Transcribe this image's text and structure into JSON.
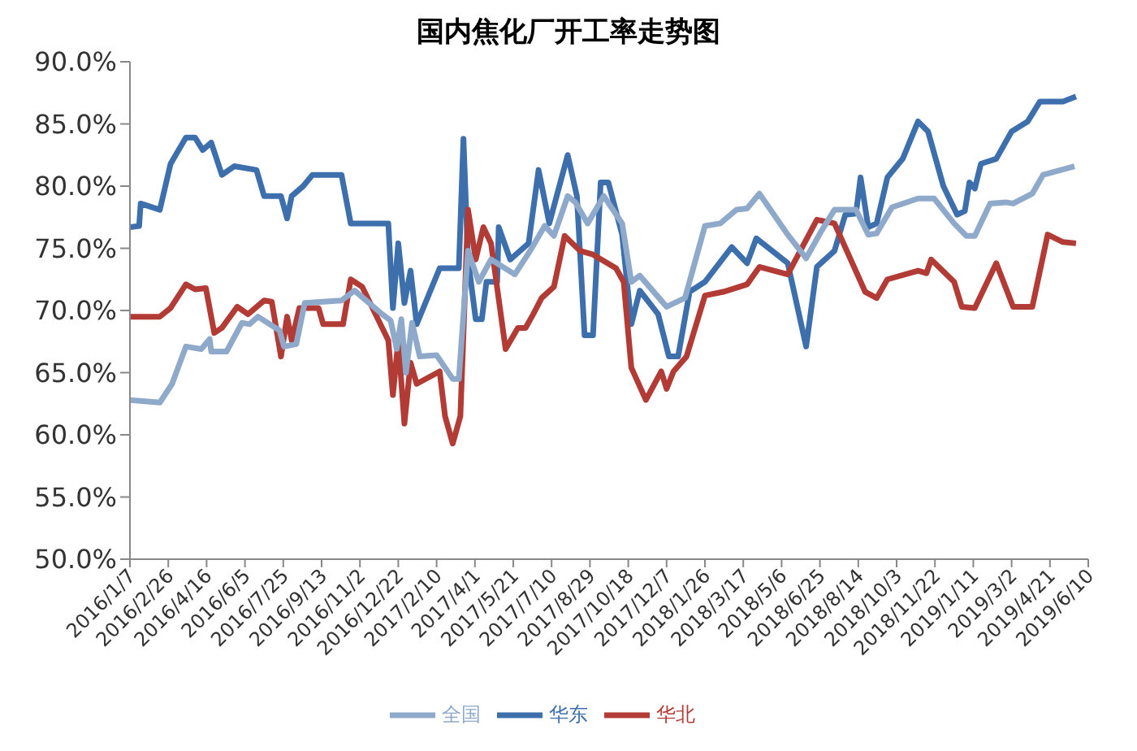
{
  "chart_data": {
    "type": "line",
    "title": "国内焦化厂开工率走势图",
    "xlim": [
      "2016-01-07",
      "2019-06-10"
    ],
    "xticks": [
      {
        "value": "2016-01-07",
        "label": "2016/1/7"
      },
      {
        "value": "2016-02-26",
        "label": "2016/2/26"
      },
      {
        "value": "2016-04-16",
        "label": "2016/4/16"
      },
      {
        "value": "2016-06-05",
        "label": "2016/6/5"
      },
      {
        "value": "2016-07-25",
        "label": "2016/7/25"
      },
      {
        "value": "2016-09-13",
        "label": "2016/9/13"
      },
      {
        "value": "2016-11-02",
        "label": "2016/11/2"
      },
      {
        "value": "2016-12-22",
        "label": "2016/12/22"
      },
      {
        "value": "2017-02-10",
        "label": "2017/2/10"
      },
      {
        "value": "2017-04-01",
        "label": "2017/4/1"
      },
      {
        "value": "2017-05-21",
        "label": "2017/5/21"
      },
      {
        "value": "2017-07-10",
        "label": "2017/7/10"
      },
      {
        "value": "2017-08-29",
        "label": "2017/8/29"
      },
      {
        "value": "2017-10-18",
        "label": "2017/10/18"
      },
      {
        "value": "2017-12-07",
        "label": "2017/12/7"
      },
      {
        "value": "2018-01-26",
        "label": "2018/1/26"
      },
      {
        "value": "2018-03-17",
        "label": "2018/3/17"
      },
      {
        "value": "2018-05-06",
        "label": "2018/5/6"
      },
      {
        "value": "2018-06-25",
        "label": "2018/6/25"
      },
      {
        "value": "2018-08-14",
        "label": "2018/8/14"
      },
      {
        "value": "2018-10-03",
        "label": "2018/10/3"
      },
      {
        "value": "2018-11-22",
        "label": "2018/11/22"
      },
      {
        "value": "2019-01-11",
        "label": "2019/1/11"
      },
      {
        "value": "2019-03-02",
        "label": "2019/3/2"
      },
      {
        "value": "2019-04-21",
        "label": "2019/4/21"
      },
      {
        "value": "2019-06-10",
        "label": "2019/6/10"
      }
    ],
    "ylim": [
      50,
      90
    ],
    "yticks": [
      {
        "value": 50,
        "label": "50.0%"
      },
      {
        "value": 55,
        "label": "55.0%"
      },
      {
        "value": 60,
        "label": "60.0%"
      },
      {
        "value": 65,
        "label": "65.0%"
      },
      {
        "value": 70,
        "label": "70.0%"
      },
      {
        "value": 75,
        "label": "75.0%"
      },
      {
        "value": 80,
        "label": "80.0%"
      },
      {
        "value": 85,
        "label": "85.0%"
      },
      {
        "value": 90,
        "label": "90.0%"
      }
    ],
    "grid": false,
    "legend": "bottom",
    "line_style": "solid",
    "series": [
      {
        "name": "华东",
        "color": "#3d6fad",
        "x": [
          "2016-01-07",
          "2016-01-19",
          "2016-01-21",
          "2016-02-15",
          "2016-02-29",
          "2016-03-20",
          "2016-04-01",
          "2016-04-11",
          "2016-04-22",
          "2016-05-06",
          "2016-05-22",
          "2016-06-20",
          "2016-06-30",
          "2016-07-22",
          "2016-07-30",
          "2016-08-05",
          "2016-08-20",
          "2016-09-01",
          "2016-10-09",
          "2016-10-21",
          "2016-12-09",
          "2016-12-15",
          "2016-12-22",
          "2016-12-30",
          "2017-01-07",
          "2017-01-15",
          "2017-02-14",
          "2017-03-11",
          "2017-03-17",
          "2017-03-23",
          "2017-04-02",
          "2017-04-10",
          "2017-04-16",
          "2017-04-30",
          "2017-05-02",
          "2017-05-17",
          "2017-06-10",
          "2017-06-23",
          "2017-07-07",
          "2017-07-31",
          "2017-08-12",
          "2017-08-22",
          "2017-09-02",
          "2017-09-12",
          "2017-09-22",
          "2017-10-10",
          "2017-10-22",
          "2017-11-02",
          "2017-11-26",
          "2017-12-10",
          "2017-12-22",
          "2018-01-06",
          "2018-01-26",
          "2018-03-02",
          "2018-03-22",
          "2018-04-03",
          "2018-05-14",
          "2018-06-07",
          "2018-06-21",
          "2018-07-14",
          "2018-07-28",
          "2018-08-11",
          "2018-08-17",
          "2018-08-27",
          "2018-09-07",
          "2018-09-21",
          "2018-10-11",
          "2018-10-31",
          "2018-11-13",
          "2018-12-03",
          "2018-12-21",
          "2018-12-31",
          "2019-01-06",
          "2019-01-13",
          "2019-01-21",
          "2019-02-10",
          "2019-03-02",
          "2019-03-23",
          "2019-04-08",
          "2019-05-08",
          "2019-05-25"
        ],
        "values": [
          76.7,
          76.8,
          78.6,
          78.1,
          81.8,
          83.9,
          83.9,
          82.9,
          83.5,
          80.9,
          81.6,
          81.3,
          79.2,
          79.2,
          77.4,
          79.2,
          80.0,
          80.9,
          80.9,
          77.0,
          77.0,
          70.2,
          75.4,
          70.6,
          73.2,
          68.9,
          73.4,
          73.4,
          83.8,
          74.1,
          69.3,
          69.3,
          72.3,
          72.3,
          76.7,
          74.1,
          75.4,
          81.3,
          77.0,
          82.5,
          79.2,
          68.0,
          68.0,
          80.3,
          80.3,
          76.1,
          68.9,
          71.6,
          69.7,
          66.3,
          66.3,
          71.5,
          72.3,
          75.1,
          73.8,
          75.8,
          73.8,
          67.1,
          73.5,
          74.8,
          77.7,
          77.8,
          80.7,
          76.7,
          77.0,
          80.7,
          82.2,
          85.2,
          84.4,
          80.0,
          77.7,
          78.0,
          80.3,
          79.8,
          81.8,
          82.2,
          84.4,
          85.2,
          86.8,
          86.8,
          87.2
        ]
      },
      {
        "name": "华北",
        "color": "#b23b35",
        "x": [
          "2016-01-07",
          "2016-02-15",
          "2016-02-29",
          "2016-03-20",
          "2016-04-01",
          "2016-04-15",
          "2016-04-26",
          "2016-05-06",
          "2016-05-26",
          "2016-06-09",
          "2016-06-30",
          "2016-07-10",
          "2016-07-22",
          "2016-07-30",
          "2016-08-05",
          "2016-08-15",
          "2016-09-09",
          "2016-09-15",
          "2016-10-11",
          "2016-10-21",
          "2016-11-05",
          "2016-12-09",
          "2016-12-15",
          "2016-12-22",
          "2016-12-30",
          "2017-01-07",
          "2017-01-15",
          "2017-02-14",
          "2017-02-21",
          "2017-03-03",
          "2017-03-13",
          "2017-03-23",
          "2017-04-02",
          "2017-04-12",
          "2017-04-22",
          "2017-05-11",
          "2017-05-27",
          "2017-06-06",
          "2017-06-16",
          "2017-06-27",
          "2017-07-13",
          "2017-07-27",
          "2017-08-16",
          "2017-09-02",
          "2017-10-02",
          "2017-10-12",
          "2017-10-22",
          "2017-11-10",
          "2017-11-30",
          "2017-12-07",
          "2017-12-16",
          "2018-01-02",
          "2018-01-26",
          "2018-02-19",
          "2018-03-22",
          "2018-04-07",
          "2018-05-14",
          "2018-06-21",
          "2018-07-14",
          "2018-08-23",
          "2018-09-07",
          "2018-09-21",
          "2018-10-31",
          "2018-11-11",
          "2018-11-17",
          "2018-12-17",
          "2018-12-27",
          "2019-01-13",
          "2019-02-10",
          "2019-03-04",
          "2019-03-29",
          "2019-04-18",
          "2019-05-08",
          "2019-05-25"
        ],
        "values": [
          69.5,
          69.5,
          70.2,
          72.1,
          71.7,
          71.8,
          68.2,
          68.6,
          70.3,
          69.7,
          70.8,
          70.7,
          66.3,
          69.5,
          67.6,
          70.2,
          70.2,
          68.9,
          68.9,
          72.5,
          71.9,
          67.6,
          63.2,
          67.6,
          60.9,
          65.8,
          64.1,
          65.1,
          61.5,
          59.3,
          61.5,
          78.1,
          74.1,
          76.7,
          75.4,
          66.9,
          68.6,
          68.6,
          69.7,
          71.0,
          71.9,
          76.0,
          74.8,
          74.5,
          73.4,
          72.3,
          65.4,
          62.8,
          65.1,
          63.7,
          65.1,
          66.3,
          71.2,
          71.5,
          72.1,
          73.5,
          72.9,
          77.3,
          77.0,
          71.5,
          71.0,
          72.5,
          73.2,
          73.0,
          74.1,
          72.3,
          70.3,
          70.2,
          73.8,
          70.3,
          70.3,
          76.1,
          75.5,
          75.4
        ]
      },
      {
        "name": "全国",
        "color": "#8fa9cb",
        "x": [
          "2016-01-07",
          "2016-02-15",
          "2016-03-02",
          "2016-03-20",
          "2016-04-09",
          "2016-04-20",
          "2016-04-22",
          "2016-05-12",
          "2016-06-01",
          "2016-06-11",
          "2016-06-22",
          "2016-07-20",
          "2016-07-26",
          "2016-08-11",
          "2016-08-22",
          "2016-10-09",
          "2016-10-26",
          "2016-12-01",
          "2016-12-12",
          "2016-12-20",
          "2016-12-26",
          "2017-01-01",
          "2017-01-09",
          "2017-01-19",
          "2017-02-10",
          "2017-03-03",
          "2017-03-11",
          "2017-03-23",
          "2017-04-06",
          "2017-04-22",
          "2017-05-23",
          "2017-06-12",
          "2017-07-01",
          "2017-07-13",
          "2017-07-31",
          "2017-08-10",
          "2017-08-26",
          "2017-09-16",
          "2017-10-10",
          "2017-10-22",
          "2017-11-02",
          "2017-12-07",
          "2017-12-31",
          "2018-01-26",
          "2018-02-15",
          "2018-03-08",
          "2018-03-22",
          "2018-04-07",
          "2018-05-14",
          "2018-06-07",
          "2018-06-27",
          "2018-07-14",
          "2018-08-11",
          "2018-08-27",
          "2018-09-07",
          "2018-09-27",
          "2018-10-31",
          "2018-11-21",
          "2018-12-17",
          "2019-01-02",
          "2019-01-13",
          "2019-02-02",
          "2019-02-22",
          "2019-03-04",
          "2019-03-29",
          "2019-04-12",
          "2019-05-23"
        ],
        "values": [
          62.8,
          62.6,
          64.1,
          67.1,
          66.9,
          67.7,
          66.7,
          66.7,
          69.0,
          68.9,
          69.5,
          68.4,
          67.1,
          67.3,
          70.6,
          70.8,
          71.6,
          69.7,
          69.2,
          66.9,
          69.3,
          65.0,
          69.0,
          66.3,
          66.4,
          64.5,
          64.5,
          74.8,
          72.3,
          74.1,
          72.9,
          74.8,
          76.8,
          76.0,
          79.2,
          78.7,
          77.0,
          79.2,
          77.0,
          72.3,
          72.8,
          70.3,
          71.0,
          76.8,
          77.0,
          78.1,
          78.2,
          79.4,
          76.1,
          74.2,
          76.4,
          78.1,
          78.1,
          76.1,
          76.2,
          78.3,
          79.0,
          79.0,
          77.0,
          76.0,
          76.0,
          78.6,
          78.7,
          78.6,
          79.4,
          80.9,
          81.6
        ]
      }
    ]
  }
}
